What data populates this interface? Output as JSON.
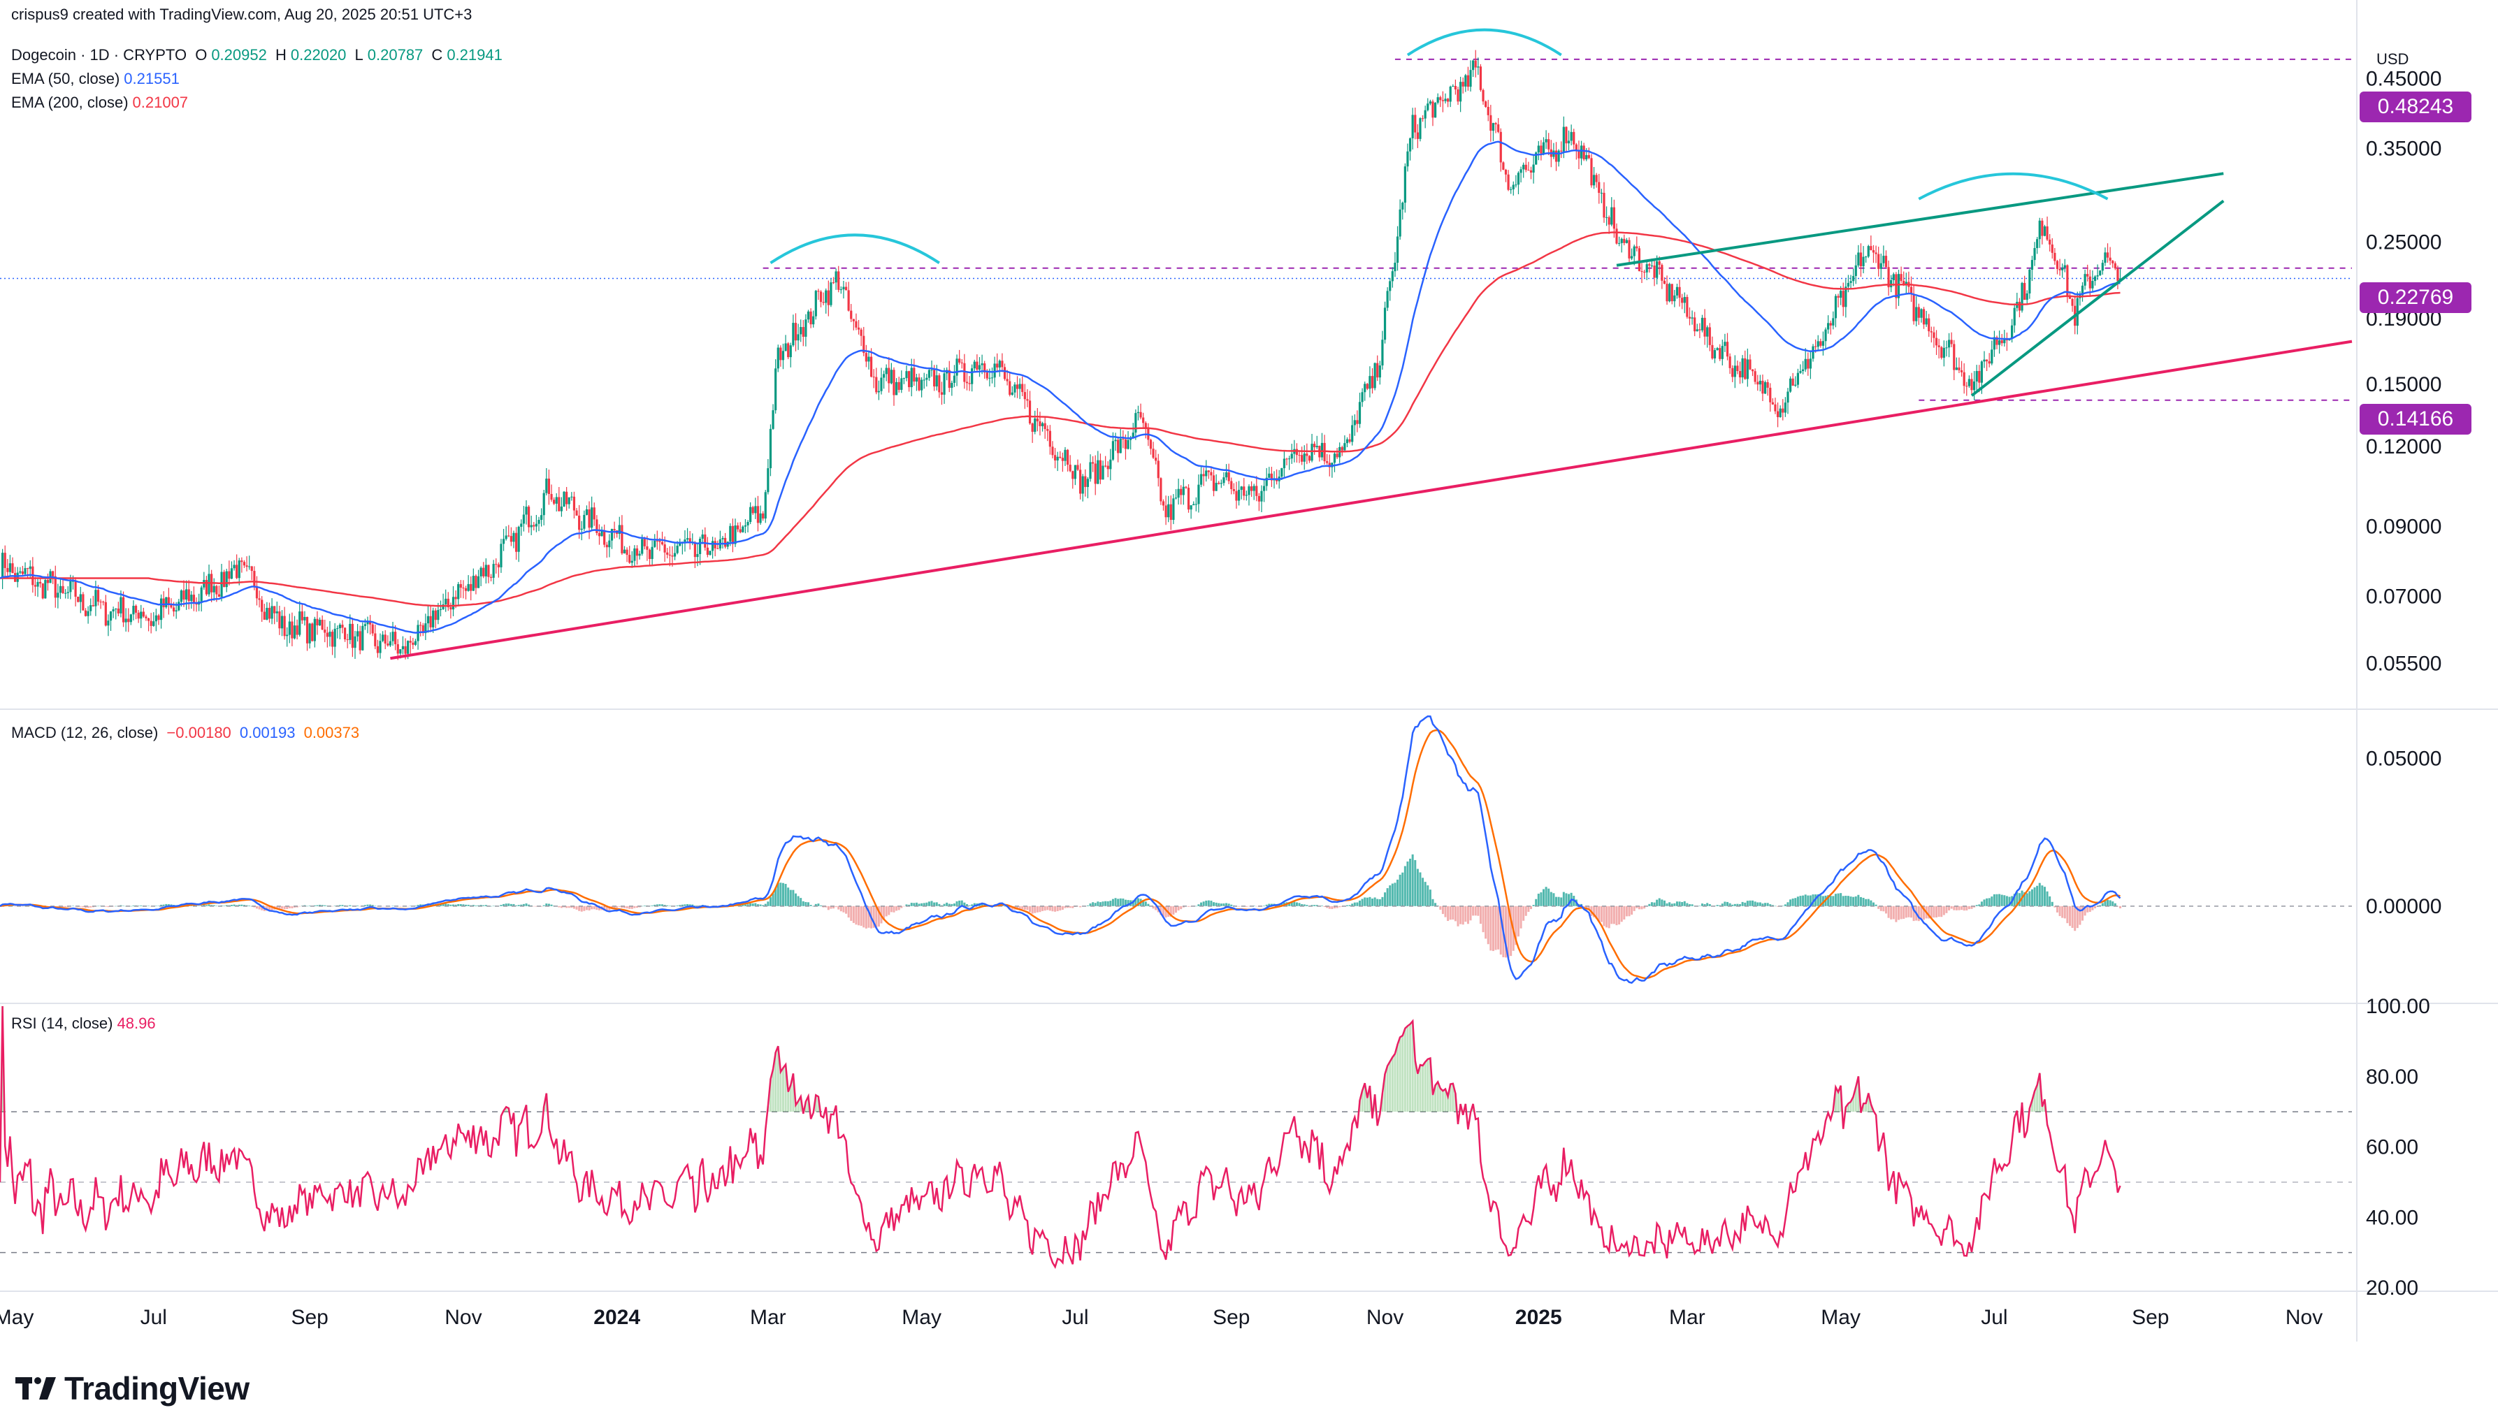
{
  "attribution": "crispus9 created with TradingView.com, Aug 20, 2025 20:51 UTC+3",
  "legend": {
    "symbol": "Dogecoin · 1D · CRYPTO",
    "ohlc": {
      "o_label": "O",
      "o": "0.20952",
      "h_label": "H",
      "h": "0.22020",
      "l_label": "L",
      "l": "0.20787",
      "c_label": "C",
      "c": "0.21941"
    },
    "ema50": {
      "label": "EMA (50, close)",
      "value": "0.21551"
    },
    "ema200": {
      "label": "EMA (200, close)",
      "value": "0.21007"
    },
    "macd": {
      "label": "MACD (12, 26, close)",
      "hist": "−0.00180",
      "macd": "0.00193",
      "signal": "0.00373"
    },
    "rsi": {
      "label": "RSI (14, close)",
      "value": "48.96"
    }
  },
  "currency": "USD",
  "price_tags": [
    "0.48243",
    "0.22769",
    "0.14166"
  ],
  "logo_text": "TradingView",
  "colors": {
    "candle_up": "#089981",
    "candle_down": "#f23645",
    "ema50": "#2962ff",
    "ema200": "#f23645",
    "macd_line": "#2962ff",
    "signal_line": "#ff6d00",
    "rsi_line": "#e91e63",
    "support_line": "#e91e63",
    "wedge_line": "#089981",
    "arc": "#26c6da",
    "tag": "#9c27b0"
  },
  "chart_data": [
    {
      "type": "candlestick",
      "pane": "price",
      "scale": "log",
      "y_tick_labels": [
        "0.45000",
        "0.35000",
        "0.25000",
        "0.19000",
        "0.15000",
        "0.12000",
        "0.09000",
        "0.07000",
        "0.05500"
      ],
      "x_tick_labels": [
        "May",
        "Jul",
        "Sep",
        "Nov",
        "2024",
        "Mar",
        "May",
        "Jul",
        "Sep",
        "Nov",
        "2025",
        "Mar",
        "May",
        "Jul",
        "Sep",
        "Nov"
      ],
      "x_range": [
        "2023-05-01",
        "2025-11-20"
      ],
      "y_range": [
        0.047,
        0.52
      ],
      "close_anchors": [
        [
          "2023-05-01",
          0.078
        ],
        [
          "2023-06-10",
          0.067
        ],
        [
          "2023-07-01",
          0.065
        ],
        [
          "2023-07-20",
          0.071
        ],
        [
          "2023-08-05",
          0.078
        ],
        [
          "2023-08-20",
          0.063
        ],
        [
          "2023-09-10",
          0.062
        ],
        [
          "2023-10-10",
          0.058
        ],
        [
          "2023-10-25",
          0.068
        ],
        [
          "2023-11-15",
          0.08
        ],
        [
          "2023-12-05",
          0.102
        ],
        [
          "2023-12-20",
          0.092
        ],
        [
          "2024-01-10",
          0.082
        ],
        [
          "2024-02-10",
          0.083
        ],
        [
          "2024-02-28",
          0.095
        ],
        [
          "2024-03-05",
          0.165
        ],
        [
          "2024-03-28",
          0.22
        ],
        [
          "2024-04-13",
          0.152
        ],
        [
          "2024-05-05",
          0.15
        ],
        [
          "2024-05-28",
          0.163
        ],
        [
          "2024-06-20",
          0.125
        ],
        [
          "2024-07-05",
          0.105
        ],
        [
          "2024-07-28",
          0.132
        ],
        [
          "2024-08-05",
          0.095
        ],
        [
          "2024-08-25",
          0.107
        ],
        [
          "2024-09-10",
          0.1
        ],
        [
          "2024-09-28",
          0.12
        ],
        [
          "2024-10-15",
          0.116
        ],
        [
          "2024-10-30",
          0.165
        ],
        [
          "2024-11-12",
          0.38
        ],
        [
          "2024-12-08",
          0.46
        ],
        [
          "2024-12-20",
          0.31
        ],
        [
          "2025-01-15",
          0.37
        ],
        [
          "2025-02-01",
          0.255
        ],
        [
          "2025-02-25",
          0.205
        ],
        [
          "2025-03-10",
          0.175
        ],
        [
          "2025-04-07",
          0.14
        ],
        [
          "2025-04-25",
          0.18
        ],
        [
          "2025-05-12",
          0.245
        ],
        [
          "2025-06-01",
          0.195
        ],
        [
          "2025-06-22",
          0.15
        ],
        [
          "2025-07-10",
          0.195
        ],
        [
          "2025-07-21",
          0.27
        ],
        [
          "2025-08-02",
          0.195
        ],
        [
          "2025-08-12",
          0.235
        ],
        [
          "2025-08-20",
          0.219
        ]
      ],
      "series": [
        {
          "name": "Dogecoin",
          "last": {
            "open": 0.20952,
            "high": 0.2202,
            "low": 0.20787,
            "close": 0.21941
          }
        },
        {
          "name": "EMA (50, close)",
          "last": 0.21551
        },
        {
          "name": "EMA (200, close)",
          "last": 0.21007
        }
      ],
      "horizontal_levels": [
        0.48243,
        0.22769,
        0.14166
      ],
      "trendlines": [
        {
          "name": "support",
          "points": [
            [
              "2023-10-03",
              0.056
            ],
            [
              "2025-11-20",
              0.175
            ]
          ]
        },
        {
          "name": "wedge-upper",
          "points": [
            [
              "2025-02-01",
              0.23
            ],
            [
              "2025-09-30",
              0.32
            ]
          ]
        },
        {
          "name": "wedge-lower",
          "points": [
            [
              "2025-06-22",
              0.144
            ],
            [
              "2025-09-30",
              0.29
            ]
          ]
        }
      ]
    },
    {
      "type": "line",
      "pane": "macd",
      "y_tick_labels": [
        "0.05000",
        "0.00000"
      ],
      "y_range": [
        -0.032,
        0.066
      ],
      "series": [
        {
          "name": "MACD",
          "last": 0.00193
        },
        {
          "name": "Signal",
          "last": 0.00373
        },
        {
          "name": "Histogram",
          "last": -0.0018
        }
      ]
    },
    {
      "type": "line",
      "pane": "rsi",
      "y_tick_labels": [
        "100.00",
        "80.00",
        "60.00",
        "40.00",
        "20.00"
      ],
      "y_range": [
        20,
        100
      ],
      "bands": [
        70,
        50,
        30
      ],
      "series": [
        {
          "name": "RSI (14, close)",
          "last": 48.96
        }
      ]
    }
  ]
}
